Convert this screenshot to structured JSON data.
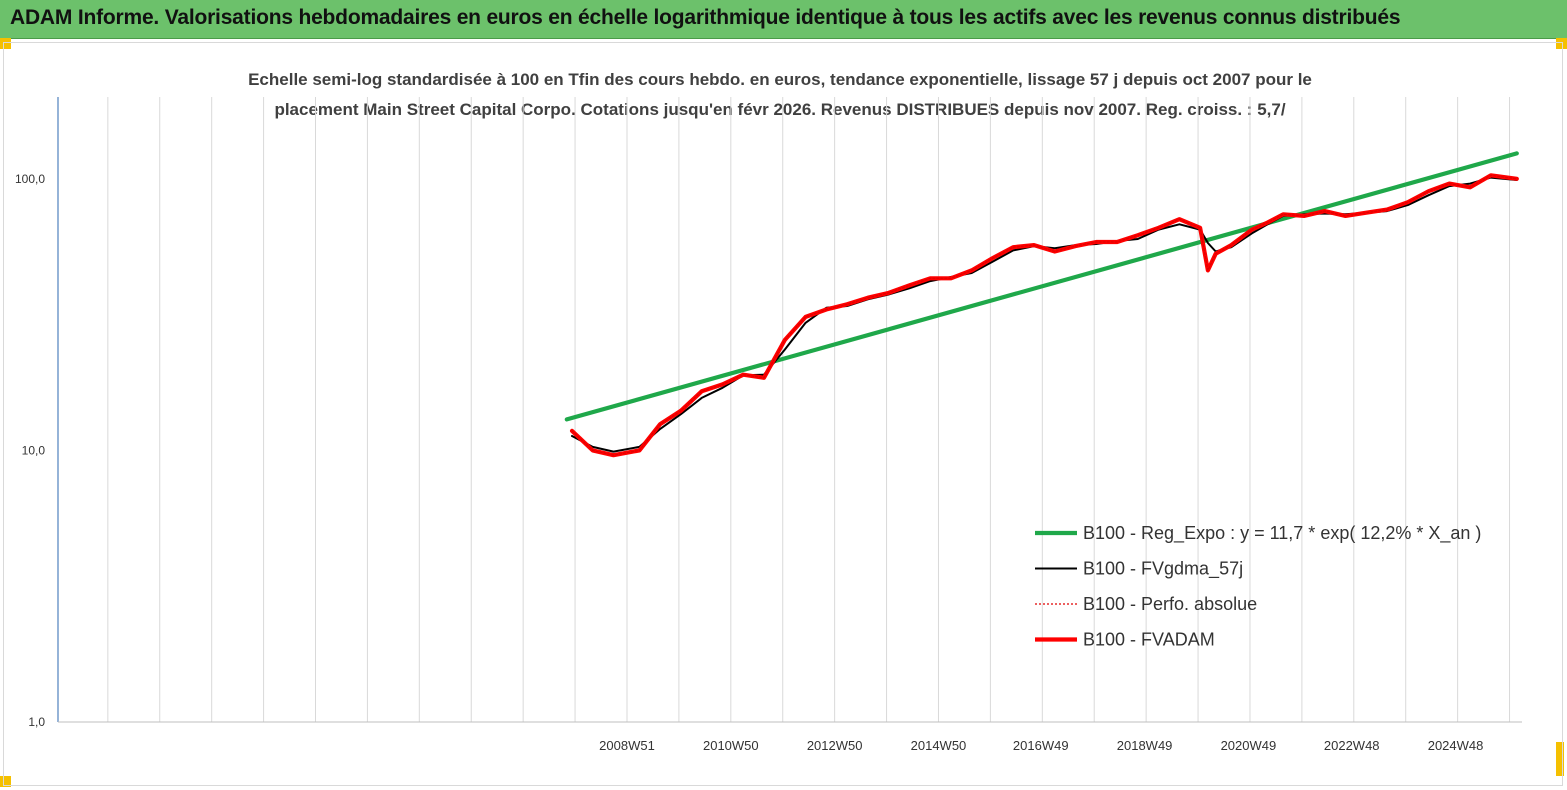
{
  "banner": {
    "title": "ADAM Informe. Valorisations hebdomadaires en euros en échelle logarithmique identique à tous les actifs avec les revenus connus distribués",
    "background": "#6cc16b",
    "corner_color": "#f5c000"
  },
  "chart_data": {
    "type": "line",
    "title_lines": [
      "Echelle semi-log standardisée à 100 en Tfin des cours hebdo. en euros, tendance exponentielle, lissage 57 j depuis oct 2007 pour le",
      "placement Main Street Capital Corpo. Cotations jusqu'en févr 2026. Revenus DISTRIBUES depuis nov 2007. Reg. croiss. : 5,7/"
    ],
    "y_scale": "log",
    "ylim": [
      1,
      200
    ],
    "y_ticks": [
      "1,0",
      "10,0",
      "100,0"
    ],
    "xlim": [
      1998.0,
      2026.2
    ],
    "x_ticks": [
      {
        "x": 2008.96,
        "label": "2008W51"
      },
      {
        "x": 2010.96,
        "label": "2010W50"
      },
      {
        "x": 2012.96,
        "label": "2012W50"
      },
      {
        "x": 2014.96,
        "label": "2014W50"
      },
      {
        "x": 2016.93,
        "label": "2016W49"
      },
      {
        "x": 2018.93,
        "label": "2018W49"
      },
      {
        "x": 2020.93,
        "label": "2020W49"
      },
      {
        "x": 2022.92,
        "label": "2022W48"
      },
      {
        "x": 2024.92,
        "label": "2024W48"
      }
    ],
    "vertical_grid": true,
    "legend_position": "bottom-right",
    "series": [
      {
        "name": "B100 - Reg_Expo : y = 11,7 * exp( 12,2% *  X_an )",
        "color": "#1fa84a",
        "style": "solid-thick",
        "x": [
          2007.8,
          2026.1
        ],
        "y": [
          13.0,
          124.0
        ]
      },
      {
        "name": "B100 - FVgdma_57j",
        "color": "#000000",
        "style": "solid",
        "x": [
          2007.9,
          2008.3,
          2008.7,
          2009.2,
          2009.6,
          2010.0,
          2010.4,
          2010.8,
          2011.2,
          2011.6,
          2012.0,
          2012.4,
          2012.8,
          2013.2,
          2013.6,
          2014.0,
          2014.4,
          2014.8,
          2015.2,
          2015.6,
          2016.0,
          2016.4,
          2016.8,
          2017.2,
          2017.6,
          2018.0,
          2018.4,
          2018.8,
          2019.2,
          2019.6,
          2020.0,
          2020.15,
          2020.3,
          2020.6,
          2021.0,
          2021.3,
          2021.6,
          2022.0,
          2022.4,
          2022.8,
          2023.2,
          2023.6,
          2024.0,
          2024.4,
          2024.8,
          2025.2,
          2025.6,
          2026.1
        ],
        "y": [
          11.3,
          10.3,
          9.9,
          10.3,
          12.0,
          13.6,
          15.6,
          17.0,
          18.9,
          19.0,
          23.5,
          29.5,
          33.5,
          34.0,
          36.0,
          37.5,
          39.5,
          42.0,
          43.5,
          45.0,
          49.5,
          54.5,
          56.5,
          55.5,
          57.0,
          57.5,
          59.0,
          60.0,
          65.0,
          68.0,
          65.0,
          58.0,
          54.0,
          56.0,
          63.0,
          68.0,
          73.0,
          74.0,
          74.5,
          74.0,
          75.0,
          76.0,
          80.0,
          87.0,
          94.0,
          96.0,
          101.0,
          99.0
        ]
      },
      {
        "name": "B100 - Perfo. absolue",
        "color": "#e00000",
        "style": "dotted",
        "x": [
          2007.9,
          2008.3,
          2008.7,
          2009.2,
          2009.6,
          2010.0,
          2010.4,
          2010.8,
          2011.2,
          2011.6,
          2012.0,
          2012.4,
          2012.8,
          2013.2,
          2013.6,
          2014.0,
          2014.4,
          2014.8,
          2015.2,
          2015.6,
          2016.0,
          2016.4,
          2016.8,
          2017.2,
          2017.6,
          2018.0,
          2018.4,
          2018.8,
          2019.2,
          2019.6,
          2020.0,
          2020.15,
          2020.3,
          2020.6,
          2021.0,
          2021.3,
          2021.6,
          2022.0,
          2022.4,
          2022.8,
          2023.2,
          2023.6,
          2024.0,
          2024.4,
          2024.8,
          2025.2,
          2025.6,
          2026.1
        ],
        "y": [
          11.8,
          10.0,
          9.6,
          10.0,
          12.5,
          14.0,
          16.5,
          17.5,
          19.0,
          18.5,
          25.5,
          31.0,
          33.0,
          34.5,
          36.5,
          38.0,
          40.5,
          43.0,
          43.0,
          46.0,
          51.0,
          56.0,
          57.0,
          54.0,
          56.5,
          58.5,
          58.5,
          62.0,
          66.0,
          71.0,
          66.0,
          46.0,
          53.0,
          57.0,
          65.0,
          69.0,
          74.0,
          73.0,
          76.0,
          73.0,
          75.0,
          77.0,
          82.0,
          90.0,
          96.0,
          93.0,
          103.0,
          100.0
        ]
      },
      {
        "name": "B100 - FVADAM",
        "color": "#ff0000",
        "style": "solid-thick",
        "x": [
          2007.9,
          2008.3,
          2008.7,
          2009.2,
          2009.6,
          2010.0,
          2010.4,
          2010.8,
          2011.2,
          2011.6,
          2012.0,
          2012.4,
          2012.8,
          2013.2,
          2013.6,
          2014.0,
          2014.4,
          2014.8,
          2015.2,
          2015.6,
          2016.0,
          2016.4,
          2016.8,
          2017.2,
          2017.6,
          2018.0,
          2018.4,
          2018.8,
          2019.2,
          2019.6,
          2020.0,
          2020.15,
          2020.3,
          2020.6,
          2021.0,
          2021.3,
          2021.6,
          2022.0,
          2022.4,
          2022.8,
          2023.2,
          2023.6,
          2024.0,
          2024.4,
          2024.8,
          2025.2,
          2025.6,
          2026.1
        ],
        "y": [
          11.8,
          10.0,
          9.6,
          10.0,
          12.5,
          14.0,
          16.5,
          17.5,
          19.0,
          18.5,
          25.5,
          31.0,
          33.0,
          34.5,
          36.5,
          38.0,
          40.5,
          43.0,
          43.0,
          46.0,
          51.0,
          56.0,
          57.0,
          54.0,
          56.5,
          58.5,
          58.5,
          62.0,
          66.0,
          71.0,
          66.0,
          46.0,
          53.0,
          57.0,
          65.0,
          69.0,
          74.0,
          73.0,
          76.0,
          73.0,
          75.0,
          77.0,
          82.0,
          90.0,
          96.0,
          93.0,
          103.0,
          100.0
        ]
      }
    ]
  }
}
